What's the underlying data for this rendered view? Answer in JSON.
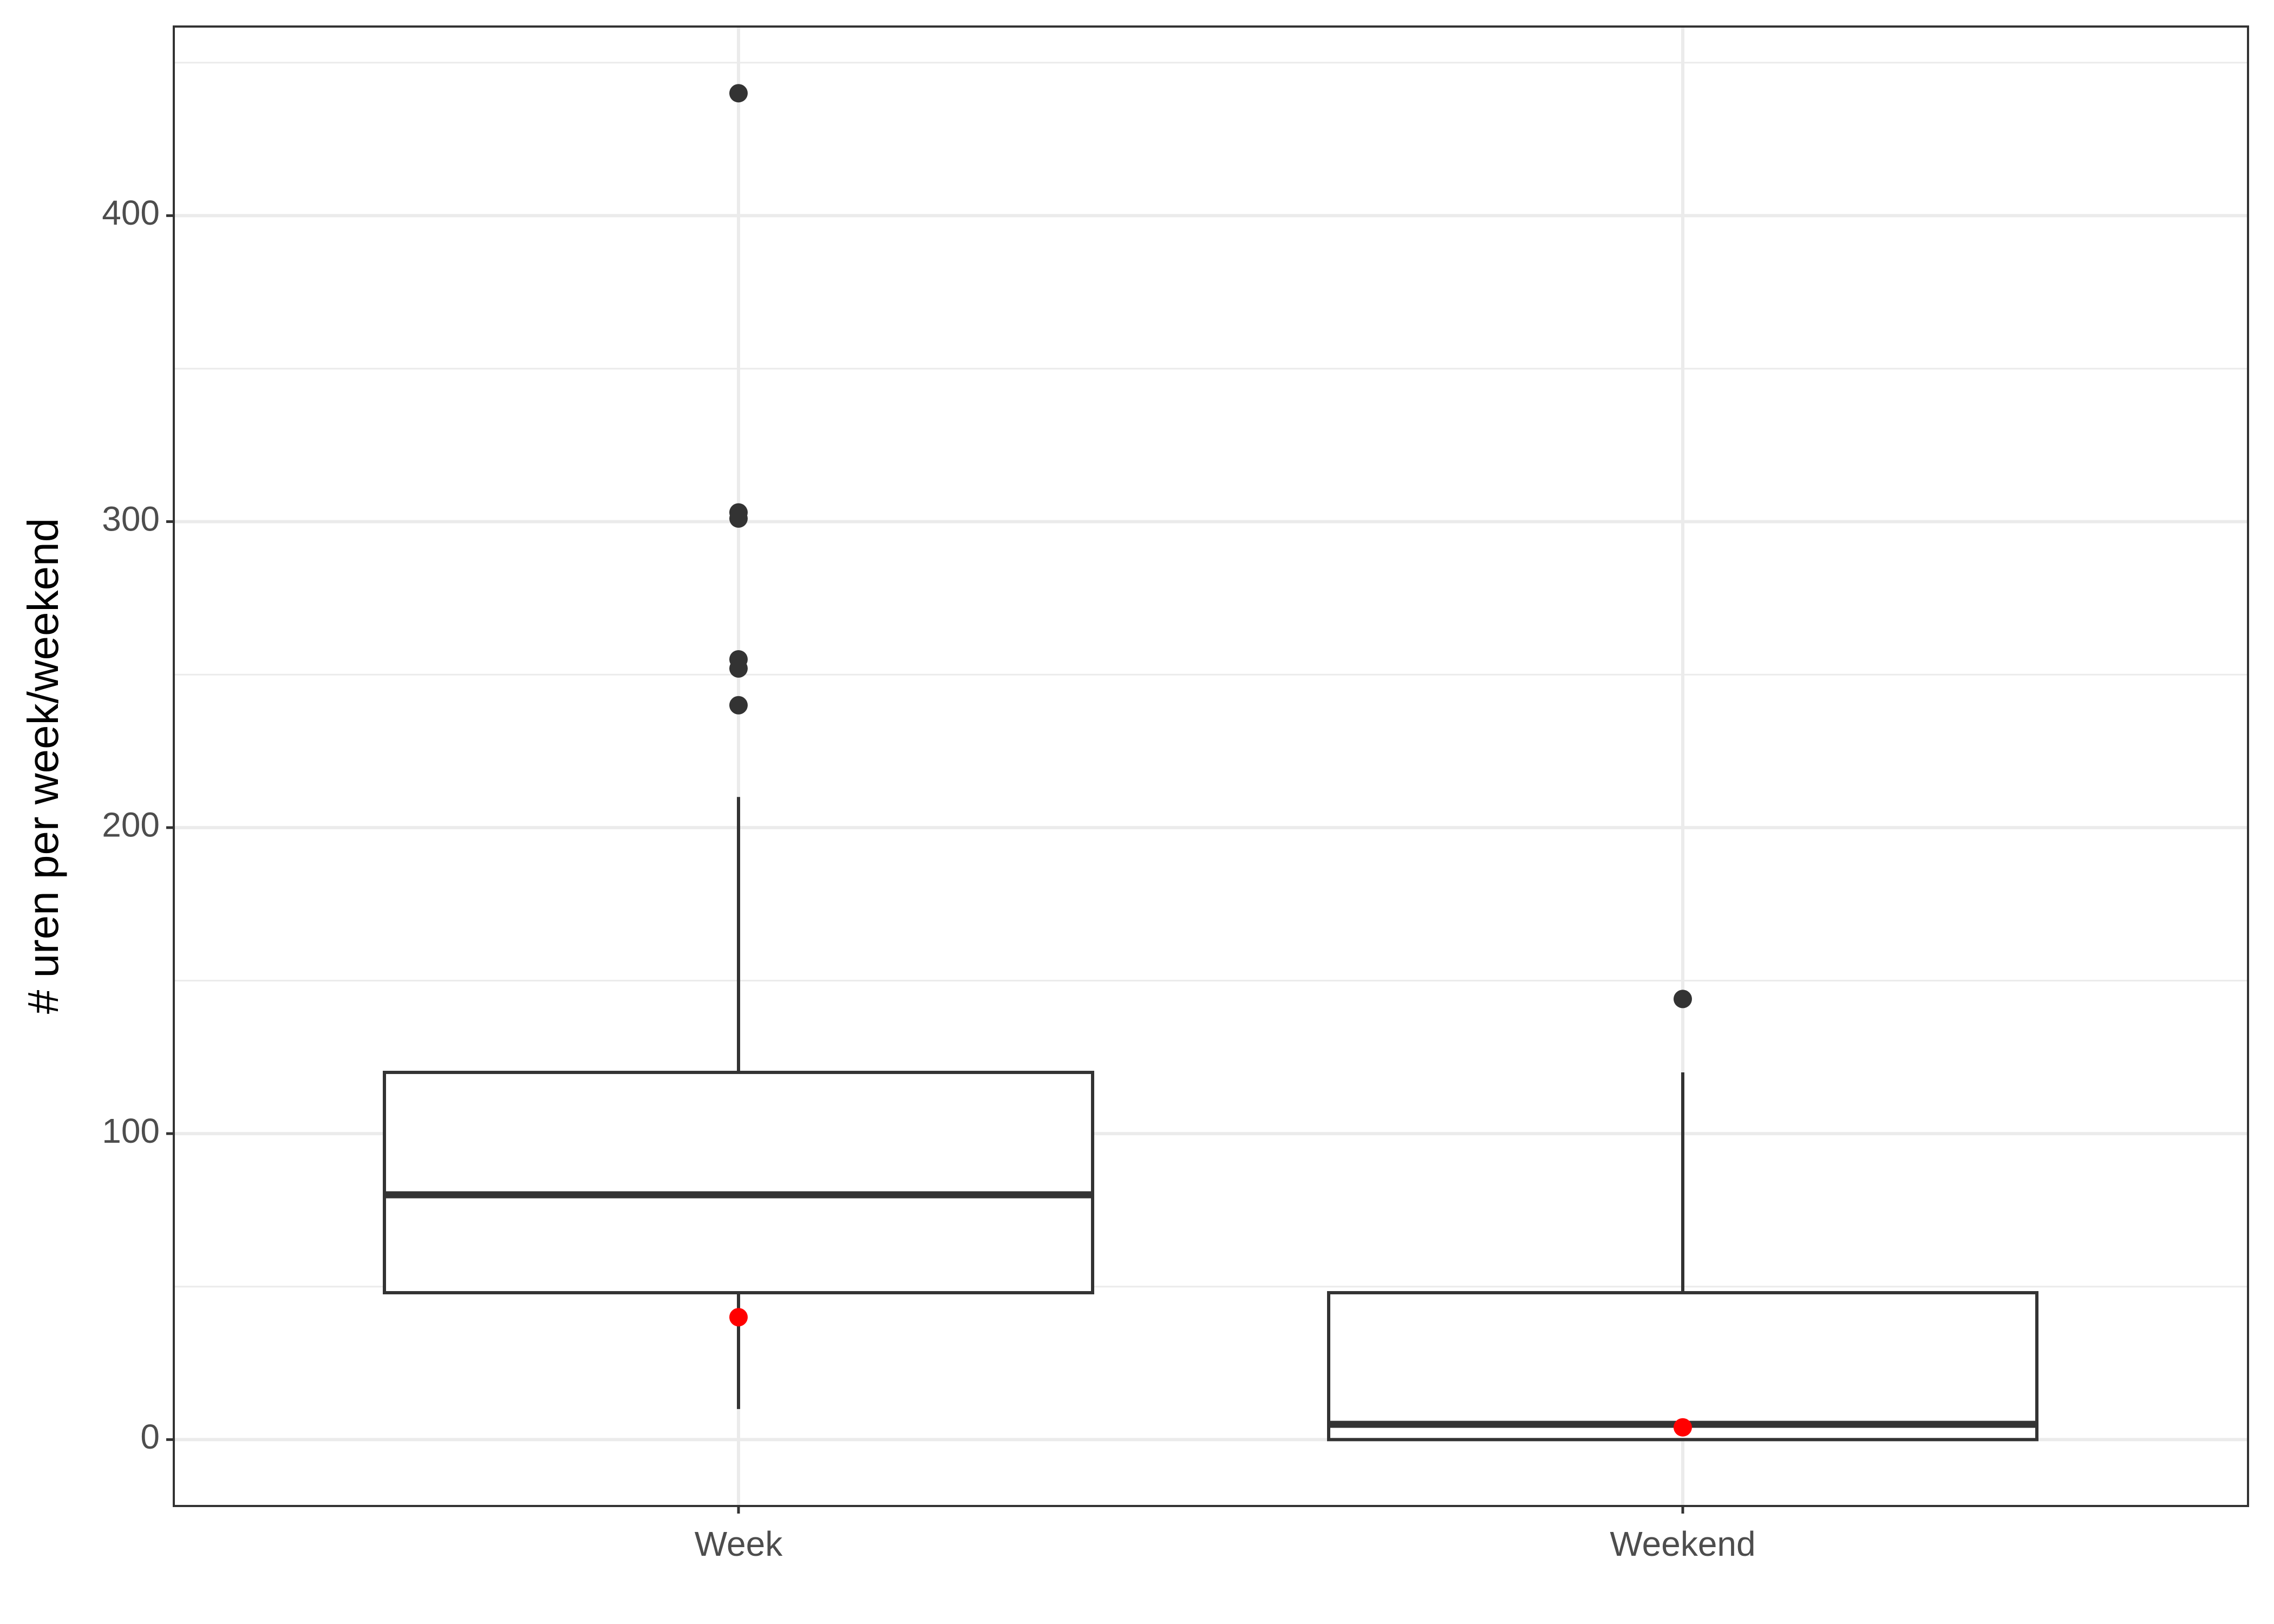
{
  "chart_data": {
    "type": "boxplot",
    "y_label": "# uren per week/weekend",
    "categories": [
      "Week",
      "Weekend"
    ],
    "boxes": [
      {
        "whisker_low": 10,
        "q1": 48,
        "median": 80,
        "q3": 120,
        "whisker_high": 210,
        "outliers": [
          440,
          303,
          301,
          255,
          252,
          240
        ],
        "marker": 40
      },
      {
        "whisker_low": 0,
        "q1": 0,
        "median": 5,
        "q3": 48,
        "whisker_high": 120,
        "outliers": [
          144
        ],
        "marker": 4
      }
    ],
    "box_color": "#333333",
    "outlier_color": "#333333",
    "marker_color": "#ff0000",
    "ylim": [
      -21.7,
      461.8
    ],
    "yticks": [
      0,
      100,
      200,
      300,
      400
    ],
    "grid": true,
    "minor_grid": true
  }
}
